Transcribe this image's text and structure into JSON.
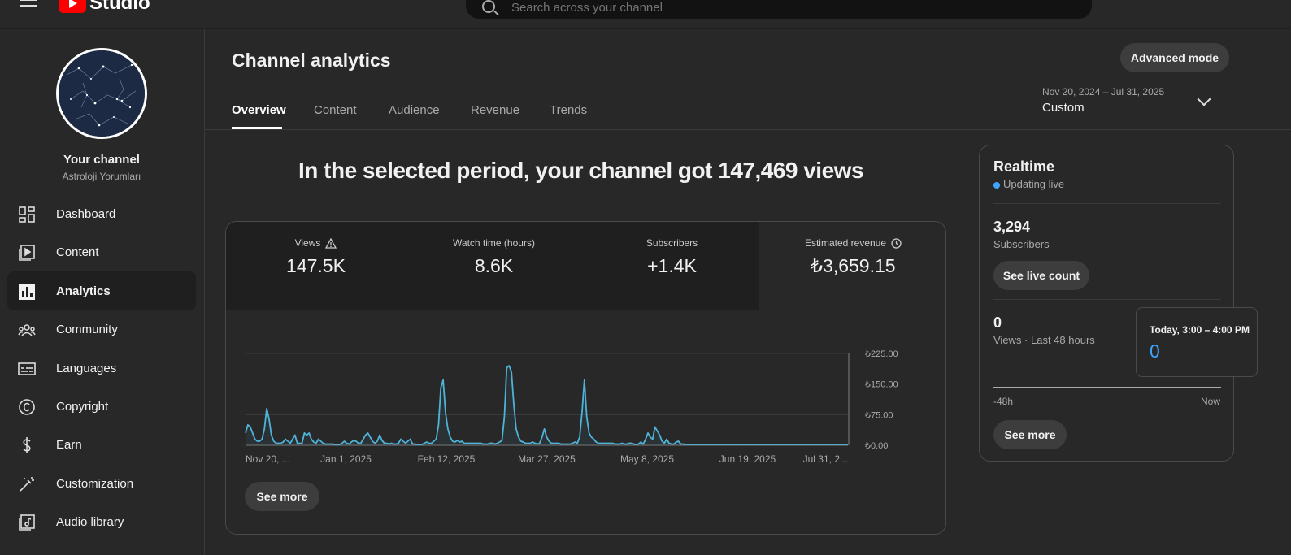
{
  "app": {
    "logo_text": "Studio"
  },
  "search": {
    "placeholder": "Search across your channel"
  },
  "channel": {
    "name": "Your channel",
    "handle": "Astroloji Yorumları"
  },
  "sidebar": {
    "items": [
      {
        "label": "Dashboard",
        "icon": "dashboard-icon"
      },
      {
        "label": "Content",
        "icon": "content-icon"
      },
      {
        "label": "Analytics",
        "icon": "analytics-icon",
        "active": true
      },
      {
        "label": "Community",
        "icon": "community-icon"
      },
      {
        "label": "Languages",
        "icon": "subtitles-icon"
      },
      {
        "label": "Copyright",
        "icon": "copyright-icon"
      },
      {
        "label": "Earn",
        "icon": "dollar-icon"
      },
      {
        "label": "Customization",
        "icon": "magic-wand-icon"
      },
      {
        "label": "Audio library",
        "icon": "audio-library-icon"
      }
    ]
  },
  "page": {
    "title": "Channel analytics",
    "advanced_mode": "Advanced mode",
    "tabs": [
      "Overview",
      "Content",
      "Audience",
      "Revenue",
      "Trends"
    ],
    "active_tab": "Overview",
    "date_range": "Nov 20, 2024 – Jul 31, 2025",
    "date_preset": "Custom",
    "headline": "In the selected period, your channel got 147,469 views"
  },
  "metrics": [
    {
      "label": "Views",
      "value": "147.5K",
      "icon": "warning-icon"
    },
    {
      "label": "Watch time (hours)",
      "value": "8.6K"
    },
    {
      "label": "Subscribers",
      "value": "+1.4K"
    },
    {
      "label": "Estimated revenue",
      "value": "₺3,659.15",
      "icon": "clock-icon",
      "selected": true
    }
  ],
  "see_more": "See more",
  "chart_data": {
    "type": "line",
    "series_color": "#4fb3d9",
    "x_tick_labels": [
      "Nov 20, ...",
      "Jan 1, 2025",
      "Feb 12, 2025",
      "Mar 27, 2025",
      "May 8, 2025",
      "Jun 19, 2025",
      "Jul 31, 2..."
    ],
    "y_tick_labels": [
      "₺0.00",
      "₺75.00",
      "₺150.00",
      "₺225.00"
    ],
    "ylim": [
      0,
      225
    ],
    "grid": true,
    "values": [
      30,
      50,
      45,
      30,
      15,
      10,
      10,
      15,
      40,
      90,
      65,
      25,
      10,
      5,
      5,
      5,
      8,
      15,
      10,
      5,
      15,
      25,
      5,
      5,
      5,
      30,
      25,
      30,
      15,
      8,
      5,
      15,
      10,
      5,
      3,
      3,
      3,
      3,
      2,
      2,
      2,
      5,
      10,
      5,
      3,
      8,
      12,
      10,
      5,
      5,
      15,
      25,
      30,
      20,
      10,
      5,
      10,
      25,
      12,
      5,
      5,
      3,
      5,
      3,
      3,
      5,
      15,
      10,
      5,
      10,
      15,
      3,
      3,
      2,
      2,
      2,
      5,
      8,
      5,
      5,
      10,
      15,
      50,
      140,
      160,
      80,
      40,
      20,
      10,
      8,
      12,
      8,
      10,
      5,
      5,
      5,
      5,
      5,
      5,
      5,
      5,
      3,
      3,
      3,
      5,
      5,
      3,
      5,
      8,
      12,
      70,
      190,
      195,
      180,
      100,
      40,
      20,
      10,
      8,
      5,
      5,
      5,
      8,
      5,
      3,
      5,
      20,
      40,
      20,
      10,
      5,
      5,
      5,
      5,
      3,
      3,
      3,
      3,
      3,
      5,
      8,
      5,
      20,
      80,
      160,
      70,
      30,
      20,
      15,
      8,
      5,
      5,
      5,
      5,
      5,
      5,
      5,
      3,
      3,
      3,
      5,
      3,
      3,
      5,
      5,
      3,
      2,
      3,
      8,
      3,
      15,
      30,
      20,
      15,
      45,
      35,
      25,
      10,
      5,
      15,
      5,
      3,
      3,
      8,
      10,
      3,
      3,
      2,
      2,
      2,
      2,
      2,
      2,
      2,
      2,
      2,
      2,
      2,
      2,
      2,
      2,
      2,
      2,
      2,
      2,
      2,
      2,
      2,
      2,
      2,
      2,
      2,
      2,
      2,
      2,
      2,
      2,
      2,
      2,
      2,
      2,
      2,
      2,
      2,
      2,
      2,
      2,
      2,
      2,
      2,
      2,
      2,
      2,
      2,
      2,
      2,
      2,
      2,
      2,
      2,
      2,
      2,
      2,
      2,
      2,
      2,
      2,
      2,
      2,
      2,
      2,
      2,
      2,
      2,
      2,
      2,
      2
    ]
  },
  "realtime": {
    "title": "Realtime",
    "status": "Updating live",
    "subscribers": "3,294",
    "subscribers_label": "Subscribers",
    "live_count_button": "See live count",
    "views": "0",
    "views_label": "Views · Last 48 hours",
    "axis_left": "-48h",
    "axis_right": "Now",
    "see_more": "See more",
    "tooltip_time": "Today, 3:00 – 4:00 PM",
    "tooltip_value": "0"
  }
}
